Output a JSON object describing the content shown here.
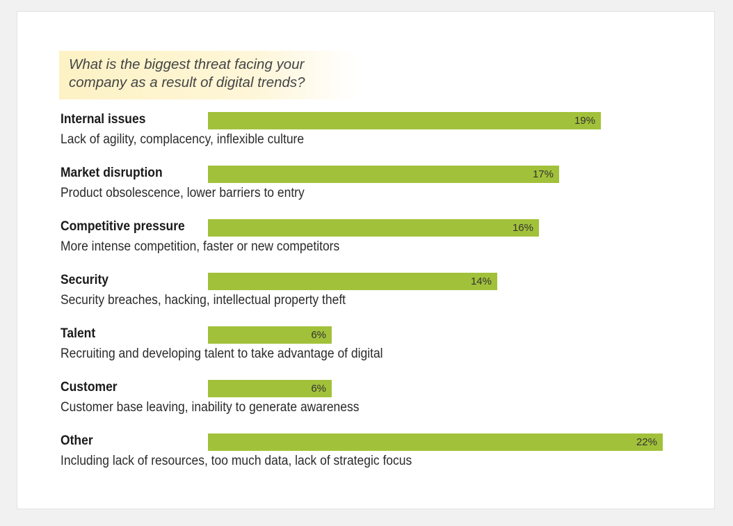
{
  "chart_data": {
    "type": "bar",
    "orientation": "horizontal",
    "title": "What is the biggest threat facing your company as a result of digital trends?",
    "title_lines": [
      "What is the biggest threat facing your",
      "company as a result of digital trends?"
    ],
    "categories": [
      "Internal issues",
      "Market disruption",
      "Competitive pressure",
      "Security",
      "Talent",
      "Customer",
      "Other"
    ],
    "descriptions": [
      "Lack of agility, complacency, inflexible culture",
      "Product obsolescence, lower barriers to entry",
      "More intense competition, faster or new competitors",
      "Security breaches, hacking, intellectual property theft",
      "Recruiting and developing talent to take advantage of digital",
      "Customer base leaving, inability to generate awareness",
      "Including lack of resources, too much data, lack of strategic focus"
    ],
    "values": [
      19,
      17,
      16,
      14,
      6,
      6,
      22
    ],
    "value_labels": [
      "19%",
      "17%",
      "16%",
      "14%",
      "6%",
      "6%",
      "22%"
    ],
    "xlim": [
      0,
      22
    ],
    "grid": false,
    "legend": "none",
    "colors": {
      "bar": "#a2c13a",
      "title_background": "#fdf2c4"
    }
  }
}
